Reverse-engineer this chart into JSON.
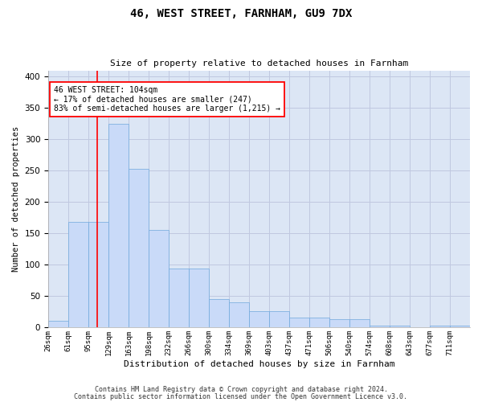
{
  "title": "46, WEST STREET, FARNHAM, GU9 7DX",
  "subtitle": "Size of property relative to detached houses in Farnham",
  "xlabel": "Distribution of detached houses by size in Farnham",
  "ylabel": "Number of detached properties",
  "footer_line1": "Contains HM Land Registry data © Crown copyright and database right 2024.",
  "footer_line2": "Contains public sector information licensed under the Open Government Licence v3.0.",
  "annotation_title": "46 WEST STREET: 104sqm",
  "annotation_line1": "← 17% of detached houses are smaller (247)",
  "annotation_line2": "83% of semi-detached houses are larger (1,215) →",
  "bin_labels": [
    "26sqm",
    "61sqm",
    "95sqm",
    "129sqm",
    "163sqm",
    "198sqm",
    "232sqm",
    "266sqm",
    "300sqm",
    "334sqm",
    "369sqm",
    "403sqm",
    "437sqm",
    "471sqm",
    "506sqm",
    "540sqm",
    "574sqm",
    "608sqm",
    "643sqm",
    "677sqm",
    "711sqm"
  ],
  "bar_heights": [
    10,
    168,
    168,
    325,
    253,
    155,
    93,
    93,
    45,
    40,
    25,
    25,
    15,
    15,
    13,
    13,
    3,
    3,
    0,
    3,
    3
  ],
  "bar_color": "#c9daf8",
  "bar_edge_color": "#6fa8dc",
  "grid_color": "#c0c8e0",
  "vline_x_bin": 2.45,
  "vline_color": "red",
  "annotation_box_color": "white",
  "annotation_box_edge": "red",
  "ylim": [
    0,
    410
  ],
  "yticks": [
    0,
    50,
    100,
    150,
    200,
    250,
    300,
    350,
    400
  ],
  "background_color": "#dce6f5"
}
